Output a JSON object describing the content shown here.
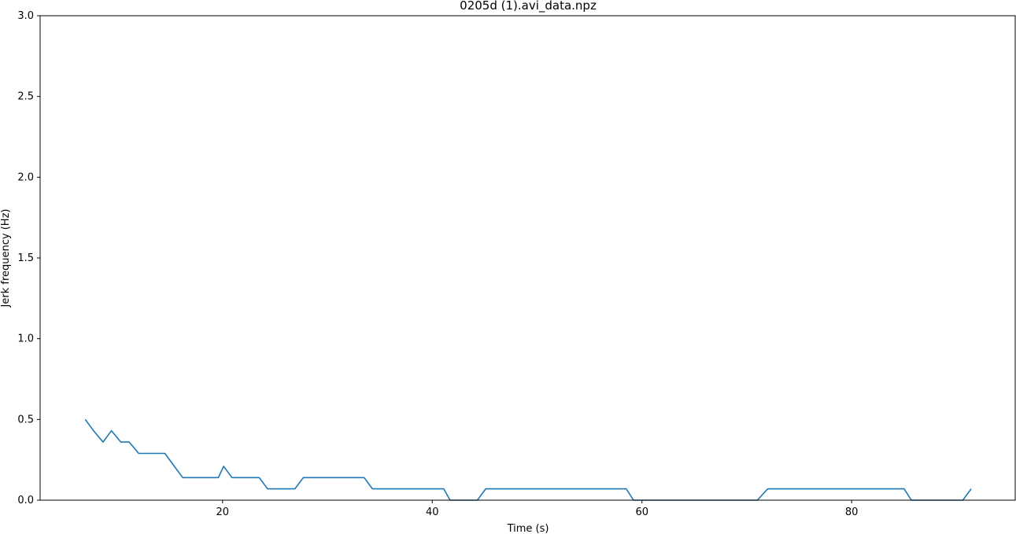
{
  "chart_data": {
    "type": "line",
    "title": "0205d (1).avi_data.npz",
    "xlabel": "Time (s)",
    "ylabel": "Jerk frequency (Hz)",
    "xlim": [
      2.6,
      95.6
    ],
    "ylim": [
      0,
      3.0
    ],
    "xticks": [
      20,
      40,
      60,
      80
    ],
    "xtick_labels": [
      "20",
      "40",
      "60",
      "80"
    ],
    "yticks": [
      0,
      0.5,
      1.0,
      1.5,
      2.0,
      2.5,
      3.0
    ],
    "ytick_labels": [
      "0.0",
      "0.5",
      "1.0",
      "1.5",
      "2.0",
      "2.5",
      "3.0"
    ],
    "grid": false,
    "line_color": "#1f77b4",
    "series": [
      {
        "x": [
          6.9,
          7.7,
          8.6,
          9.4,
          10.3,
          11.1,
          12.0,
          12.8,
          13.7,
          14.5,
          15.4,
          16.2,
          17.1,
          17.9,
          18.8,
          19.6,
          20.1,
          20.9,
          21.8,
          22.6,
          23.5,
          24.3,
          25.2,
          26.0,
          26.9,
          27.7,
          28.6,
          29.4,
          30.3,
          31.1,
          32.0,
          32.8,
          33.5,
          34.3,
          35.2,
          36.0,
          36.9,
          37.7,
          38.6,
          39.4,
          40.3,
          41.1,
          41.7,
          42.5,
          43.4,
          44.3,
          45.1,
          45.9,
          46.8,
          47.6,
          48.5,
          49.3,
          50.2,
          51.0,
          51.9,
          52.7,
          53.6,
          54.4,
          55.3,
          56.1,
          57.0,
          57.8,
          58.5,
          59.2,
          60.0,
          61.0,
          62.0,
          63.0,
          64.0,
          65.0,
          66.0,
          67.0,
          68.0,
          69.0,
          70.0,
          71.0,
          72.0,
          73.0,
          74.0,
          75.0,
          76.0,
          77.0,
          78.0,
          79.0,
          80.0,
          81.0,
          82.0,
          83.0,
          84.0,
          85.0,
          85.7,
          86.3,
          87.2,
          88.0,
          88.9,
          89.8,
          90.6,
          91.4
        ],
        "y": [
          0.5,
          0.43,
          0.36,
          0.43,
          0.36,
          0.36,
          0.29,
          0.29,
          0.29,
          0.29,
          0.21,
          0.14,
          0.14,
          0.14,
          0.14,
          0.14,
          0.21,
          0.14,
          0.14,
          0.14,
          0.14,
          0.07,
          0.07,
          0.07,
          0.07,
          0.14,
          0.14,
          0.14,
          0.14,
          0.14,
          0.14,
          0.14,
          0.14,
          0.07,
          0.07,
          0.07,
          0.07,
          0.07,
          0.07,
          0.07,
          0.07,
          0.07,
          0.0,
          0.0,
          0.0,
          0.0,
          0.07,
          0.07,
          0.07,
          0.07,
          0.07,
          0.07,
          0.07,
          0.07,
          0.07,
          0.07,
          0.07,
          0.07,
          0.07,
          0.07,
          0.07,
          0.07,
          0.07,
          0.0,
          0.0,
          0.0,
          0.0,
          0.0,
          0.0,
          0.0,
          0.0,
          0.0,
          0.0,
          0.0,
          0.0,
          0.0,
          0.07,
          0.07,
          0.07,
          0.07,
          0.07,
          0.07,
          0.07,
          0.07,
          0.07,
          0.07,
          0.07,
          0.07,
          0.07,
          0.07,
          0.0,
          0.0,
          0.0,
          0.0,
          0.0,
          0.0,
          0.0,
          0.07
        ]
      }
    ]
  }
}
